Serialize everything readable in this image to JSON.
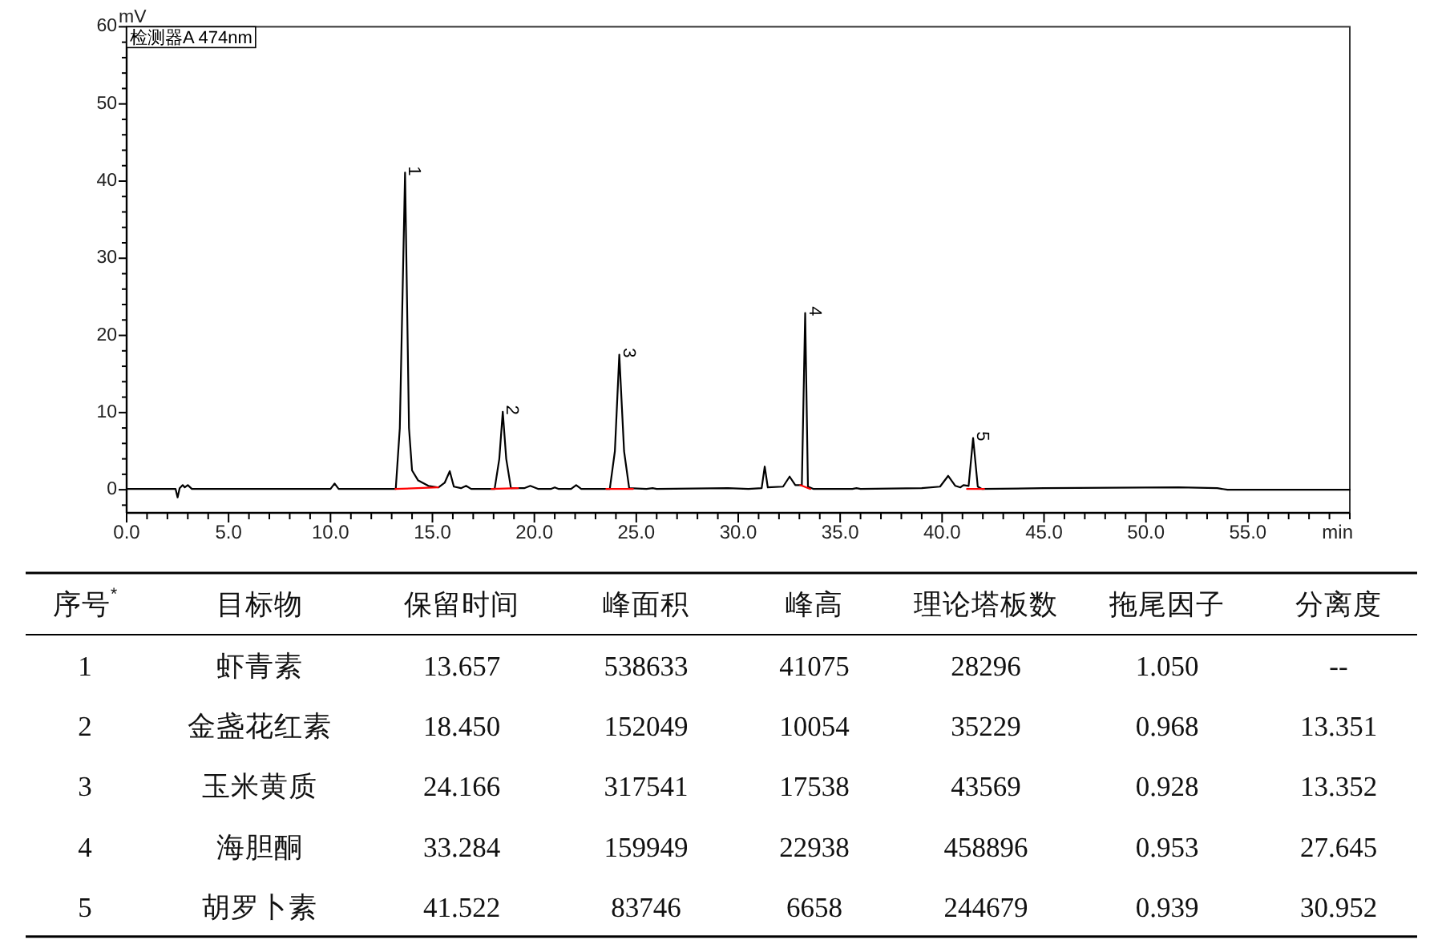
{
  "chart_data": [
    {
      "type": "line",
      "xlabel": "min",
      "ylabel": "mV",
      "xlim": [
        0,
        60
      ],
      "ylim": [
        -3,
        60
      ],
      "xticks": [
        {
          "value": 0,
          "label": "0.0"
        },
        {
          "value": 1,
          "label": null
        },
        {
          "value": 2,
          "label": null
        },
        {
          "value": 3,
          "label": null
        },
        {
          "value": 4,
          "label": null
        },
        {
          "value": 5,
          "label": "5.0"
        },
        {
          "value": 6,
          "label": null
        },
        {
          "value": 7,
          "label": null
        },
        {
          "value": 8,
          "label": null
        },
        {
          "value": 9,
          "label": null
        },
        {
          "value": 10,
          "label": "10.0"
        },
        {
          "value": 11,
          "label": null
        },
        {
          "value": 12,
          "label": null
        },
        {
          "value": 13,
          "label": null
        },
        {
          "value": 14,
          "label": null
        },
        {
          "value": 15,
          "label": "15.0"
        },
        {
          "value": 16,
          "label": null
        },
        {
          "value": 17,
          "label": null
        },
        {
          "value": 18,
          "label": null
        },
        {
          "value": 19,
          "label": null
        },
        {
          "value": 20,
          "label": "20.0"
        },
        {
          "value": 21,
          "label": null
        },
        {
          "value": 22,
          "label": null
        },
        {
          "value": 23,
          "label": null
        },
        {
          "value": 24,
          "label": null
        },
        {
          "value": 25,
          "label": "25.0"
        },
        {
          "value": 26,
          "label": null
        },
        {
          "value": 27,
          "label": null
        },
        {
          "value": 28,
          "label": null
        },
        {
          "value": 29,
          "label": null
        },
        {
          "value": 30,
          "label": "30.0"
        },
        {
          "value": 31,
          "label": null
        },
        {
          "value": 32,
          "label": null
        },
        {
          "value": 33,
          "label": null
        },
        {
          "value": 34,
          "label": null
        },
        {
          "value": 35,
          "label": "35.0"
        },
        {
          "value": 36,
          "label": null
        },
        {
          "value": 37,
          "label": null
        },
        {
          "value": 38,
          "label": null
        },
        {
          "value": 39,
          "label": null
        },
        {
          "value": 40,
          "label": "40.0"
        },
        {
          "value": 41,
          "label": null
        },
        {
          "value": 42,
          "label": null
        },
        {
          "value": 43,
          "label": null
        },
        {
          "value": 44,
          "label": null
        },
        {
          "value": 45,
          "label": "45.0"
        },
        {
          "value": 46,
          "label": null
        },
        {
          "value": 47,
          "label": null
        },
        {
          "value": 48,
          "label": null
        },
        {
          "value": 49,
          "label": null
        },
        {
          "value": 50,
          "label": "50.0"
        },
        {
          "value": 51,
          "label": null
        },
        {
          "value": 52,
          "label": null
        },
        {
          "value": 53,
          "label": null
        },
        {
          "value": 54,
          "label": null
        },
        {
          "value": 55,
          "label": "55.0"
        },
        {
          "value": 56,
          "label": null
        },
        {
          "value": 57,
          "label": null
        },
        {
          "value": 58,
          "label": null
        },
        {
          "value": 59,
          "label": null
        },
        {
          "value": 60,
          "label": null
        }
      ],
      "yticks": [
        {
          "value": -2,
          "label": null
        },
        0,
        {
          "value": 2,
          "label": null
        },
        {
          "value": 4,
          "label": null
        },
        {
          "value": 6,
          "label": null
        },
        {
          "value": 8,
          "label": null
        },
        10,
        {
          "value": 12,
          "label": null
        },
        {
          "value": 14,
          "label": null
        },
        {
          "value": 16,
          "label": null
        },
        {
          "value": 18,
          "label": null
        },
        20,
        {
          "value": 22,
          "label": null
        },
        {
          "value": 24,
          "label": null
        },
        {
          "value": 26,
          "label": null
        },
        {
          "value": 28,
          "label": null
        },
        30,
        {
          "value": 32,
          "label": null
        },
        {
          "value": 34,
          "label": null
        },
        {
          "value": 36,
          "label": null
        },
        {
          "value": 38,
          "label": null
        },
        40,
        {
          "value": 42,
          "label": null
        },
        {
          "value": 44,
          "label": null
        },
        {
          "value": 46,
          "label": null
        },
        {
          "value": 48,
          "label": null
        },
        50,
        {
          "value": 52,
          "label": null
        },
        {
          "value": 54,
          "label": null
        },
        {
          "value": 56,
          "label": null
        },
        {
          "value": 58,
          "label": null
        },
        60
      ],
      "legend": "top left",
      "series": [
        {
          "name": "检测器A 474nm",
          "color": "#000000",
          "x": [
            0,
            2.4,
            2.5,
            2.6,
            2.75,
            2.85,
            3.0,
            3.2,
            10.0,
            10.2,
            10.4,
            13.2,
            13.4,
            13.657,
            13.85,
            14.0,
            14.3,
            14.8,
            15.3,
            15.6,
            15.85,
            16.05,
            16.4,
            16.65,
            16.9,
            18.05,
            18.28,
            18.45,
            18.62,
            18.85,
            19.5,
            19.8,
            20.2,
            20.8,
            21.0,
            21.2,
            21.8,
            22.05,
            22.3,
            23.7,
            23.95,
            24.166,
            24.4,
            24.65,
            25.5,
            25.8,
            26.0,
            29.5,
            30.5,
            31.15,
            31.3,
            31.45,
            32.2,
            32.52,
            32.8,
            33.12,
            33.284,
            33.42,
            33.7,
            35.6,
            35.8,
            36.0,
            39.0,
            39.9,
            40.3,
            40.65,
            40.9,
            41.05,
            41.3,
            41.522,
            41.75,
            41.95,
            45.0,
            51.6,
            53.5,
            54.0,
            60.0
          ],
          "values": [
            0.1,
            0.1,
            -1.0,
            0.2,
            0.6,
            0.3,
            0.6,
            0.1,
            0.1,
            0.8,
            0.1,
            0.1,
            8,
            41.1,
            8,
            2.5,
            1.2,
            0.5,
            0.3,
            0.9,
            2.4,
            0.4,
            0.2,
            0.5,
            0.1,
            0.1,
            4,
            10.1,
            4,
            0.2,
            0.2,
            0.5,
            0.1,
            0.1,
            0.3,
            0.1,
            0.1,
            0.6,
            0.1,
            0.1,
            5,
            17.5,
            5,
            0.2,
            0.1,
            0.2,
            0.1,
            0.2,
            0.1,
            0.2,
            3.0,
            0.3,
            0.4,
            1.7,
            0.6,
            0.6,
            22.9,
            0.4,
            0.1,
            0.1,
            0.2,
            0.1,
            0.2,
            0.4,
            1.8,
            0.5,
            0.3,
            0.6,
            0.5,
            6.7,
            0.4,
            0.1,
            0.2,
            0.3,
            0.2,
            0.0,
            0.0
          ]
        },
        {
          "color": "#ff0000",
          "x": [
            13.18,
            15.28
          ],
          "values": [
            0.1,
            0.3
          ]
        },
        {
          "color": "#ff0000",
          "x": [
            17.9,
            19.2
          ],
          "values": [
            0.1,
            0.2
          ]
        },
        {
          "color": "#ff0000",
          "x": [
            23.53,
            24.84
          ],
          "values": [
            0.1,
            0.1
          ]
        },
        {
          "color": "#ff0000",
          "x": [
            33.04,
            33.54
          ],
          "values": [
            0.6,
            0.1
          ]
        },
        {
          "color": "#ff0000",
          "x": [
            41.22,
            42.06
          ],
          "values": [
            0.1,
            0.1
          ]
        }
      ],
      "annotations": [
        {
          "text": "1",
          "x": 13.657,
          "y": 41.1
        },
        {
          "text": "2",
          "x": 18.45,
          "y": 10.1
        },
        {
          "text": "3",
          "x": 24.166,
          "y": 17.5
        },
        {
          "text": "4",
          "x": 33.284,
          "y": 22.9
        },
        {
          "text": "5",
          "x": 41.522,
          "y": 6.7
        }
      ]
    },
    {
      "type": "heatmap",
      "ylabel": "序号$^{*}$",
      "categories": [
        "目标物",
        "保留时间",
        "峰面积",
        "峰高",
        "理论塔板数",
        "拖尾因子",
        "分离度"
      ],
      "y_categories": [
        "1",
        "2",
        "3",
        "4",
        "5"
      ],
      "cells": [
        [
          null,
          null,
          null,
          null,
          null,
          null,
          null
        ],
        [
          null,
          null,
          null,
          null,
          null,
          null,
          null
        ],
        [
          null,
          null,
          null,
          null,
          null,
          null,
          null
        ],
        [
          null,
          null,
          null,
          null,
          null,
          null,
          null
        ],
        [
          null,
          null,
          null,
          null,
          null,
          null,
          null
        ]
      ],
      "cell_labels": [
        [
          "虾青素",
          "13.657",
          "538633",
          "41075",
          "28296",
          "1.050",
          "--"
        ],
        [
          "金盏花红素",
          "18.450",
          "152049",
          "10054",
          "35229",
          "0.968",
          "13.351"
        ],
        [
          "玉米黄质",
          "24.166",
          "317541",
          "17538",
          "43569",
          "0.928",
          "13.352"
        ],
        [
          "海胆酮",
          "33.284",
          "159949",
          "22938",
          "458896",
          "0.953",
          "27.645"
        ],
        [
          "胡罗卜素",
          "41.522",
          "83746",
          "6658",
          "244679",
          "0.939",
          "30.952"
        ]
      ]
    }
  ]
}
